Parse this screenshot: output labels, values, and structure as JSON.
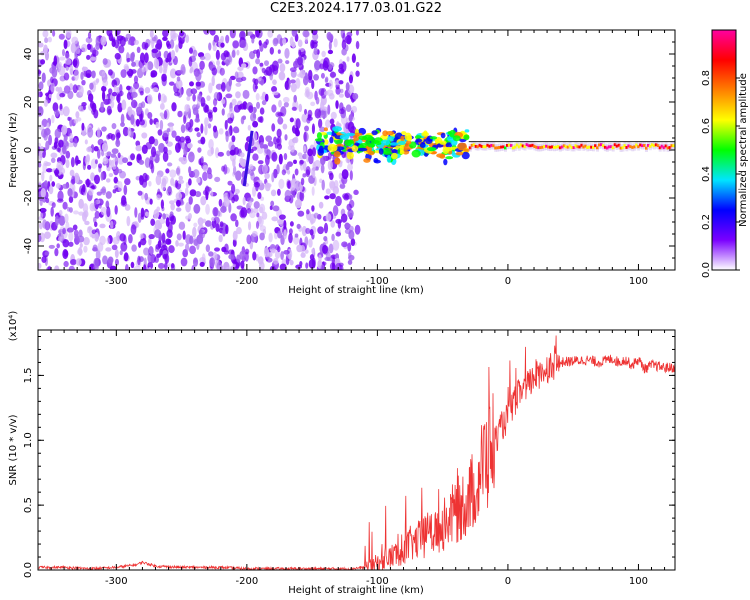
{
  "title": "C2E3.2024.177.03.01.G22",
  "chart_data": [
    {
      "type": "heatmap",
      "title": "",
      "xlabel": "Height of straight line (km)",
      "ylabel": "Frequency (Hz)",
      "xlim": [
        -360,
        128
      ],
      "ylim": [
        -50,
        50
      ],
      "x_ticks": [
        -300,
        -200,
        -100,
        0,
        100
      ],
      "y_ticks": [
        -40,
        -20,
        0,
        20,
        40
      ],
      "colorbar": {
        "label": "Normalized spectral amplitude",
        "range": [
          0,
          1
        ],
        "ticks": [
          "0.0",
          "0.2",
          "0.4",
          "0.6",
          "0.8"
        ],
        "colors": [
          "#ffffff",
          "#7a00ff",
          "#0000ff",
          "#00e5ff",
          "#00ff00",
          "#ffff00",
          "#ff7f00",
          "#ff0000",
          "#ff00a0"
        ]
      },
      "features": [
        {
          "region": "noise",
          "x_range": [
            -360,
            -115
          ],
          "freq_range": [
            -50,
            50
          ],
          "amplitude": 0.1
        },
        {
          "region": "transition",
          "x_range": [
            -145,
            -30
          ],
          "freq_center": 2,
          "freq_spread": 8,
          "amplitude": 0.4
        },
        {
          "region": "carrier",
          "x_range": [
            -30,
            128
          ],
          "freq_center": 1.5,
          "freq_spread": 1.5,
          "amplitude": 0.95
        }
      ]
    },
    {
      "type": "line",
      "title": "",
      "xlabel": "Height of straight line (km)",
      "ylabel": "SNR (10 * v/v)",
      "y_multiplier": "(x10⁴)",
      "xlim": [
        -360,
        128
      ],
      "ylim": [
        0,
        1.85
      ],
      "x_ticks": [
        -300,
        -200,
        -100,
        0,
        100
      ],
      "y_ticks": [
        "0.0",
        "0.5",
        "1.0",
        "1.5"
      ],
      "series": [
        {
          "color": "#ee3333",
          "x": [
            -360,
            -340,
            -320,
            -300,
            -285,
            -280,
            -270,
            -250,
            -220,
            -200,
            -180,
            -160,
            -140,
            -120,
            -110,
            -100,
            -95,
            -90,
            -85,
            -80,
            -75,
            -70,
            -65,
            -60,
            -55,
            -50,
            -45,
            -40,
            -35,
            -30,
            -25,
            -20,
            -15,
            -10,
            -5,
            0,
            5,
            10,
            15,
            20,
            25,
            30,
            40,
            50,
            60,
            70,
            80,
            85,
            90,
            95,
            100,
            105,
            110,
            115,
            120,
            128
          ],
          "y": [
            0.02,
            0.02,
            0.01,
            0.02,
            0.04,
            0.06,
            0.03,
            0.02,
            0.02,
            0.01,
            0.01,
            0.01,
            0.01,
            0.01,
            0.02,
            0.05,
            0.08,
            0.1,
            0.13,
            0.16,
            0.2,
            0.22,
            0.25,
            0.28,
            0.3,
            0.34,
            0.4,
            0.45,
            0.5,
            0.55,
            0.65,
            0.8,
            0.9,
            1.0,
            1.1,
            1.18,
            1.3,
            1.38,
            1.42,
            1.48,
            1.52,
            1.56,
            1.6,
            1.61,
            1.62,
            1.6,
            1.63,
            1.6,
            1.62,
            1.58,
            1.62,
            1.55,
            1.58,
            1.57,
            1.56,
            1.56
          ]
        }
      ]
    }
  ]
}
